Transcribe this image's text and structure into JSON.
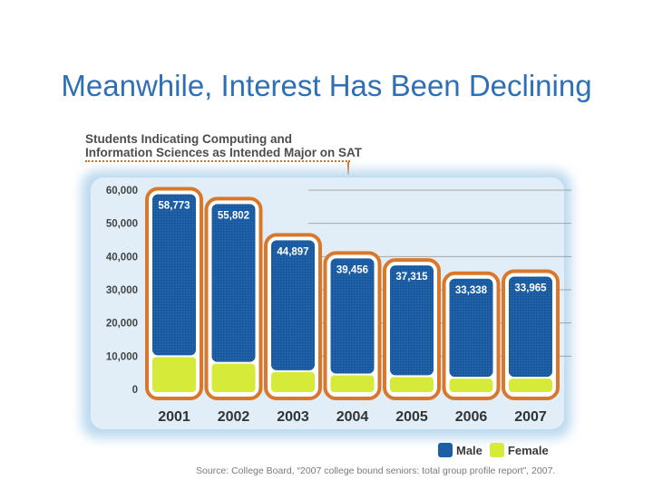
{
  "slide": {
    "title": "Meanwhile, Interest Has Been Declining",
    "source": "Source: College Board, “2007 college bound seniors: total group profile report”, 2007."
  },
  "chart_data": {
    "type": "bar",
    "title": "Students Indicating Computing and\nInformation Sciences as Intended Major on SAT",
    "title_line1": "Students Indicating Computing and",
    "title_line2": "Information Sciences as Intended Major on SAT",
    "categories": [
      "2001",
      "2002",
      "2003",
      "2004",
      "2005",
      "2006",
      "2007"
    ],
    "total_labels": [
      "58,773",
      "55,802",
      "44,897",
      "39,456",
      "37,315",
      "33,338",
      "33,965"
    ],
    "totals": [
      58773,
      55802,
      44897,
      39456,
      37315,
      33338,
      33965
    ],
    "series": [
      {
        "name": "Male",
        "values": [
          48773,
          47802,
          39397,
          34956,
          33315,
          29838,
          30465
        ],
        "color": "#1c5fa6"
      },
      {
        "name": "Female",
        "values": [
          10000,
          8000,
          5500,
          4500,
          4000,
          3500,
          3500
        ],
        "color": "#d6ea3a"
      }
    ],
    "stacked": true,
    "ylim": [
      0,
      60000
    ],
    "yticks": [
      "0",
      "10,000",
      "20,000",
      "30,000",
      "40,000",
      "50,000",
      "60,000"
    ],
    "ytick_values": [
      0,
      10000,
      20000,
      30000,
      40000,
      50000,
      60000
    ],
    "grid": true,
    "legend_position": "bottom-right",
    "colors": {
      "frame": "#d9782a",
      "panel_glow": "#b9d8ee",
      "axis_text": "#444444",
      "grid": "#888888"
    }
  }
}
